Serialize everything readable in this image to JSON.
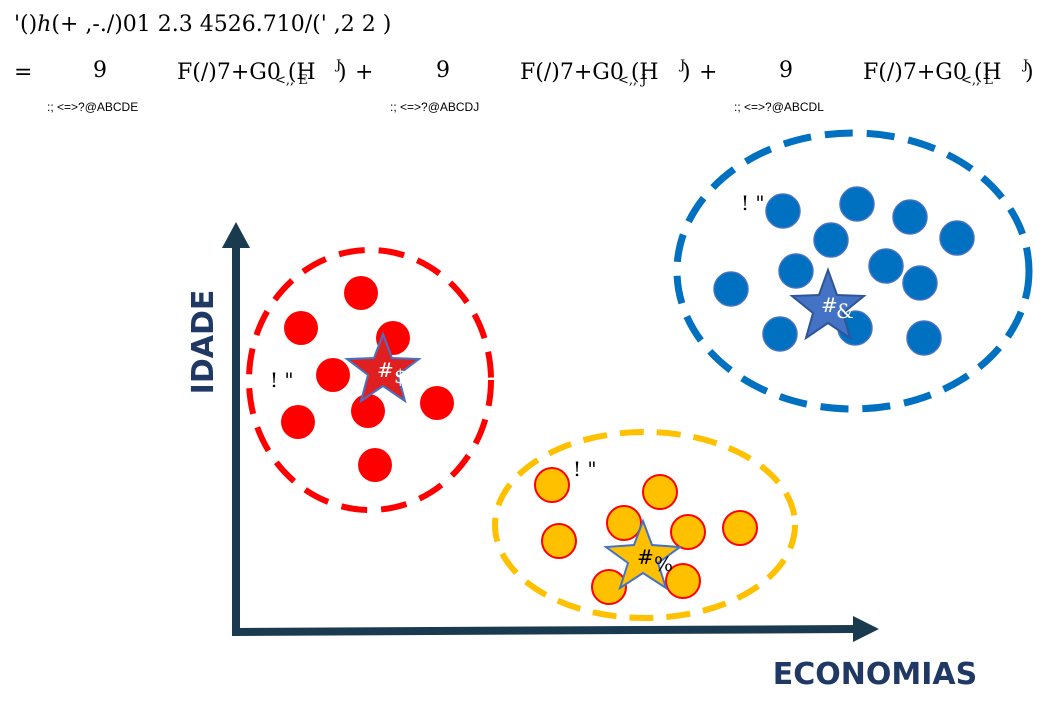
{
  "formula": {
    "line1": "'()ℎ(+ ,-./)01 2.3  4526.710/(' ,2 2 )",
    "eq_sign": "=",
    "terms": [
      {
        "nine": "9",
        "expr": "F(/)7+G0 (H",
        "sub": "<,, E",
        "close": ")",
        "op": "+",
        "under": ":;  <=>?@ABCDE"
      },
      {
        "nine": "9",
        "expr": "F(/)7+G0 (H",
        "sub": "<,, J",
        "close": ")",
        "op": "+",
        "under": ":;  <=>?@ABCDJ"
      },
      {
        "nine": "9",
        "expr": "F(/)7+G0 (H",
        "sub": "<,, L",
        "close": ")",
        "op": "",
        "under": ":;  <=>?@ABCDL"
      }
    ],
    "sup": "J"
  },
  "axes": {
    "y_label": "IDADE",
    "x_label": "ECONOMIAS",
    "color": "#1a3a4f"
  },
  "clusters": [
    {
      "name": "red",
      "fill": "#ff0000",
      "stroke": "#ff0000",
      "ring": "#ff0000",
      "label": "! \"",
      "centroid_label": "#",
      "centroid_sub": "$",
      "centroid_fill": "#e02020",
      "points": 8
    },
    {
      "name": "yellow",
      "fill": "#ffc000",
      "stroke": "#ff0000",
      "ring": "#ffc000",
      "label": "! \"",
      "centroid_label": "#",
      "centroid_sub": "%",
      "centroid_fill": "#ffc000",
      "points": 8
    },
    {
      "name": "blue",
      "fill": "#0070c0",
      "stroke": "#4472c4",
      "ring": "#0070c0",
      "label": "! \"",
      "centroid_label": "#",
      "centroid_sub": "&",
      "centroid_fill": "#4472c4",
      "points": 14
    }
  ]
}
